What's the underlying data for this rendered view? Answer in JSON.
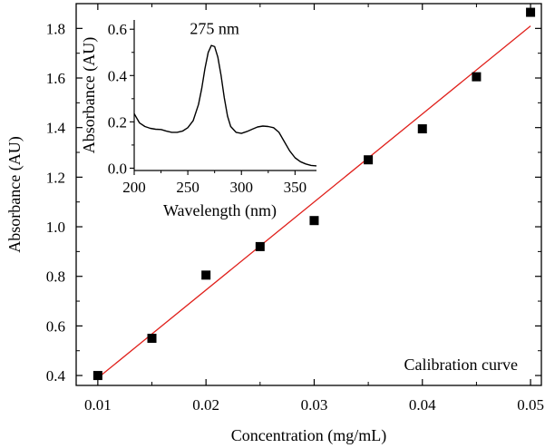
{
  "chart_data": [
    {
      "type": "scatter",
      "title": "",
      "xlabel": "Concentration (mg/mL)",
      "ylabel": "Absorbance (AU)",
      "xlim": [
        0.008,
        0.051
      ],
      "ylim": [
        0.36,
        1.9
      ],
      "xticks": [
        0.01,
        0.02,
        0.03,
        0.04,
        0.05
      ],
      "xticklabels": [
        "0.01",
        "0.02",
        "0.03",
        "0.04",
        "0.05"
      ],
      "yticks": [
        0.4,
        0.6,
        0.8,
        1.0,
        1.2,
        1.4,
        1.6,
        1.8
      ],
      "yticklabels": [
        "0.4",
        "0.6",
        "0.8",
        "1.0",
        "1.2",
        "1.4",
        "1.6",
        "1.8"
      ],
      "annotation": "Calibration curve",
      "series": [
        {
          "kind": "points",
          "marker": "square",
          "color": "#000000",
          "x": [
            0.01,
            0.015,
            0.02,
            0.025,
            0.03,
            0.035,
            0.04,
            0.045,
            0.05
          ],
          "y": [
            0.4,
            0.55,
            0.805,
            0.92,
            1.025,
            1.27,
            1.395,
            1.605,
            1.865
          ]
        },
        {
          "kind": "fit-line",
          "color": "#e0201b",
          "x": [
            0.01,
            0.05
          ],
          "y": [
            0.39,
            1.81
          ]
        }
      ]
    },
    {
      "type": "line",
      "title": "",
      "xlabel": "Wavelength (nm)",
      "ylabel": "Absorbance (AU)",
      "xlim": [
        200,
        370
      ],
      "ylim": [
        -0.01,
        0.64
      ],
      "xticks": [
        200,
        250,
        300,
        350
      ],
      "xticklabels": [
        "200",
        "250",
        "300",
        "350"
      ],
      "yticks": [
        0.0,
        0.2,
        0.4,
        0.6
      ],
      "yticklabels": [
        "0.0",
        "0.2",
        "0.4",
        "0.6"
      ],
      "annotation": "275 nm",
      "peak": {
        "x": 275,
        "y": 0.525
      },
      "series": [
        {
          "color": "#000000",
          "x": [
            200,
            205,
            210,
            215,
            220,
            225,
            230,
            235,
            240,
            245,
            250,
            255,
            260,
            263,
            266,
            269,
            272,
            275,
            278,
            281,
            284,
            287,
            290,
            295,
            300,
            305,
            310,
            315,
            320,
            325,
            330,
            335,
            340,
            345,
            350,
            355,
            360,
            365,
            370
          ],
          "y": [
            0.235,
            0.195,
            0.18,
            0.172,
            0.168,
            0.167,
            0.16,
            0.155,
            0.155,
            0.16,
            0.175,
            0.205,
            0.275,
            0.345,
            0.43,
            0.5,
            0.53,
            0.525,
            0.48,
            0.4,
            0.305,
            0.225,
            0.18,
            0.155,
            0.15,
            0.158,
            0.168,
            0.178,
            0.182,
            0.18,
            0.175,
            0.155,
            0.115,
            0.075,
            0.045,
            0.028,
            0.018,
            0.012,
            0.01
          ]
        }
      ]
    }
  ]
}
